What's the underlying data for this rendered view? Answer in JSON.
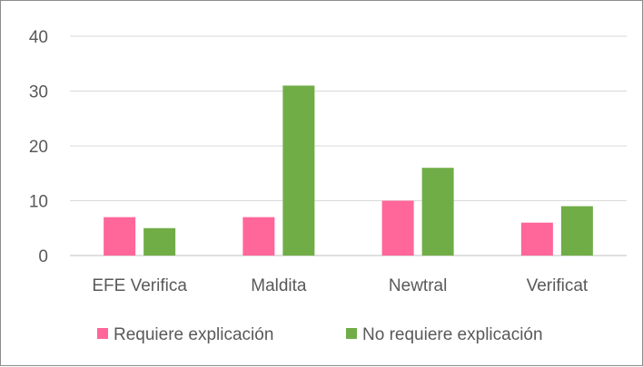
{
  "chart_data": {
    "type": "bar",
    "categories": [
      "EFE Verifica",
      "Maldita",
      "Newtral",
      "Verificat"
    ],
    "series": [
      {
        "name": "Requiere explicación",
        "values": [
          7,
          7,
          10,
          6
        ],
        "color": "#ff6699"
      },
      {
        "name": "No requiere explicación",
        "values": [
          5,
          31,
          16,
          9
        ],
        "color": "#70ad47"
      }
    ],
    "ylim": [
      0,
      40
    ],
    "yticks": [
      0,
      10,
      20,
      30,
      40
    ],
    "grid": true,
    "legend_position": "bottom"
  }
}
